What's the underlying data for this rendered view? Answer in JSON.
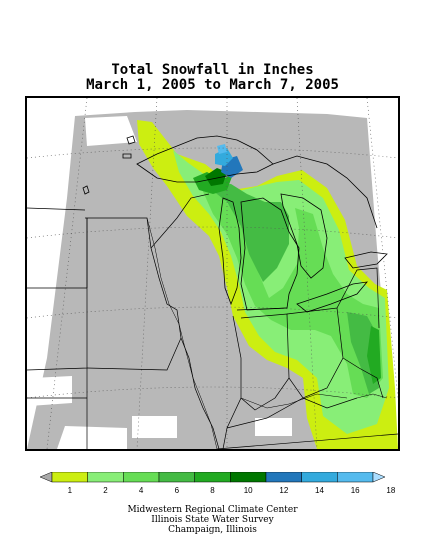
{
  "title": {
    "line1": "Total Snowfall in Inches",
    "line2": "March 1, 2005 to March 7, 2005"
  },
  "legend": {
    "labels": [
      "1",
      "2",
      "4",
      "6",
      "8",
      "10",
      "12",
      "14",
      "16",
      "18"
    ],
    "colors": [
      "#a9a9a9",
      "#ccee11",
      "#88ee77",
      "#66dd55",
      "#44bb44",
      "#22aa22",
      "#007700",
      "#2277bb",
      "#33aadd",
      "#55bbee",
      "#aaddff"
    ]
  },
  "map_colors": {
    "no_snow": "#b8b8b8",
    "trace": "#ffffff",
    "band_1_2": "#ccee11",
    "band_2_4": "#88ee77",
    "band_4_6": "#66dd55",
    "band_6_8": "#44bb44",
    "band_8_10": "#22aa22",
    "band_10_12": "#007700",
    "band_12_14": "#2277bb",
    "band_14_16": "#33aadd",
    "band_16_18": "#55bbee"
  },
  "credits": {
    "line1": "Midwestern Regional Climate Center",
    "line2": "Illinois State Water Survey",
    "line3": "Champaign, Illinois"
  }
}
